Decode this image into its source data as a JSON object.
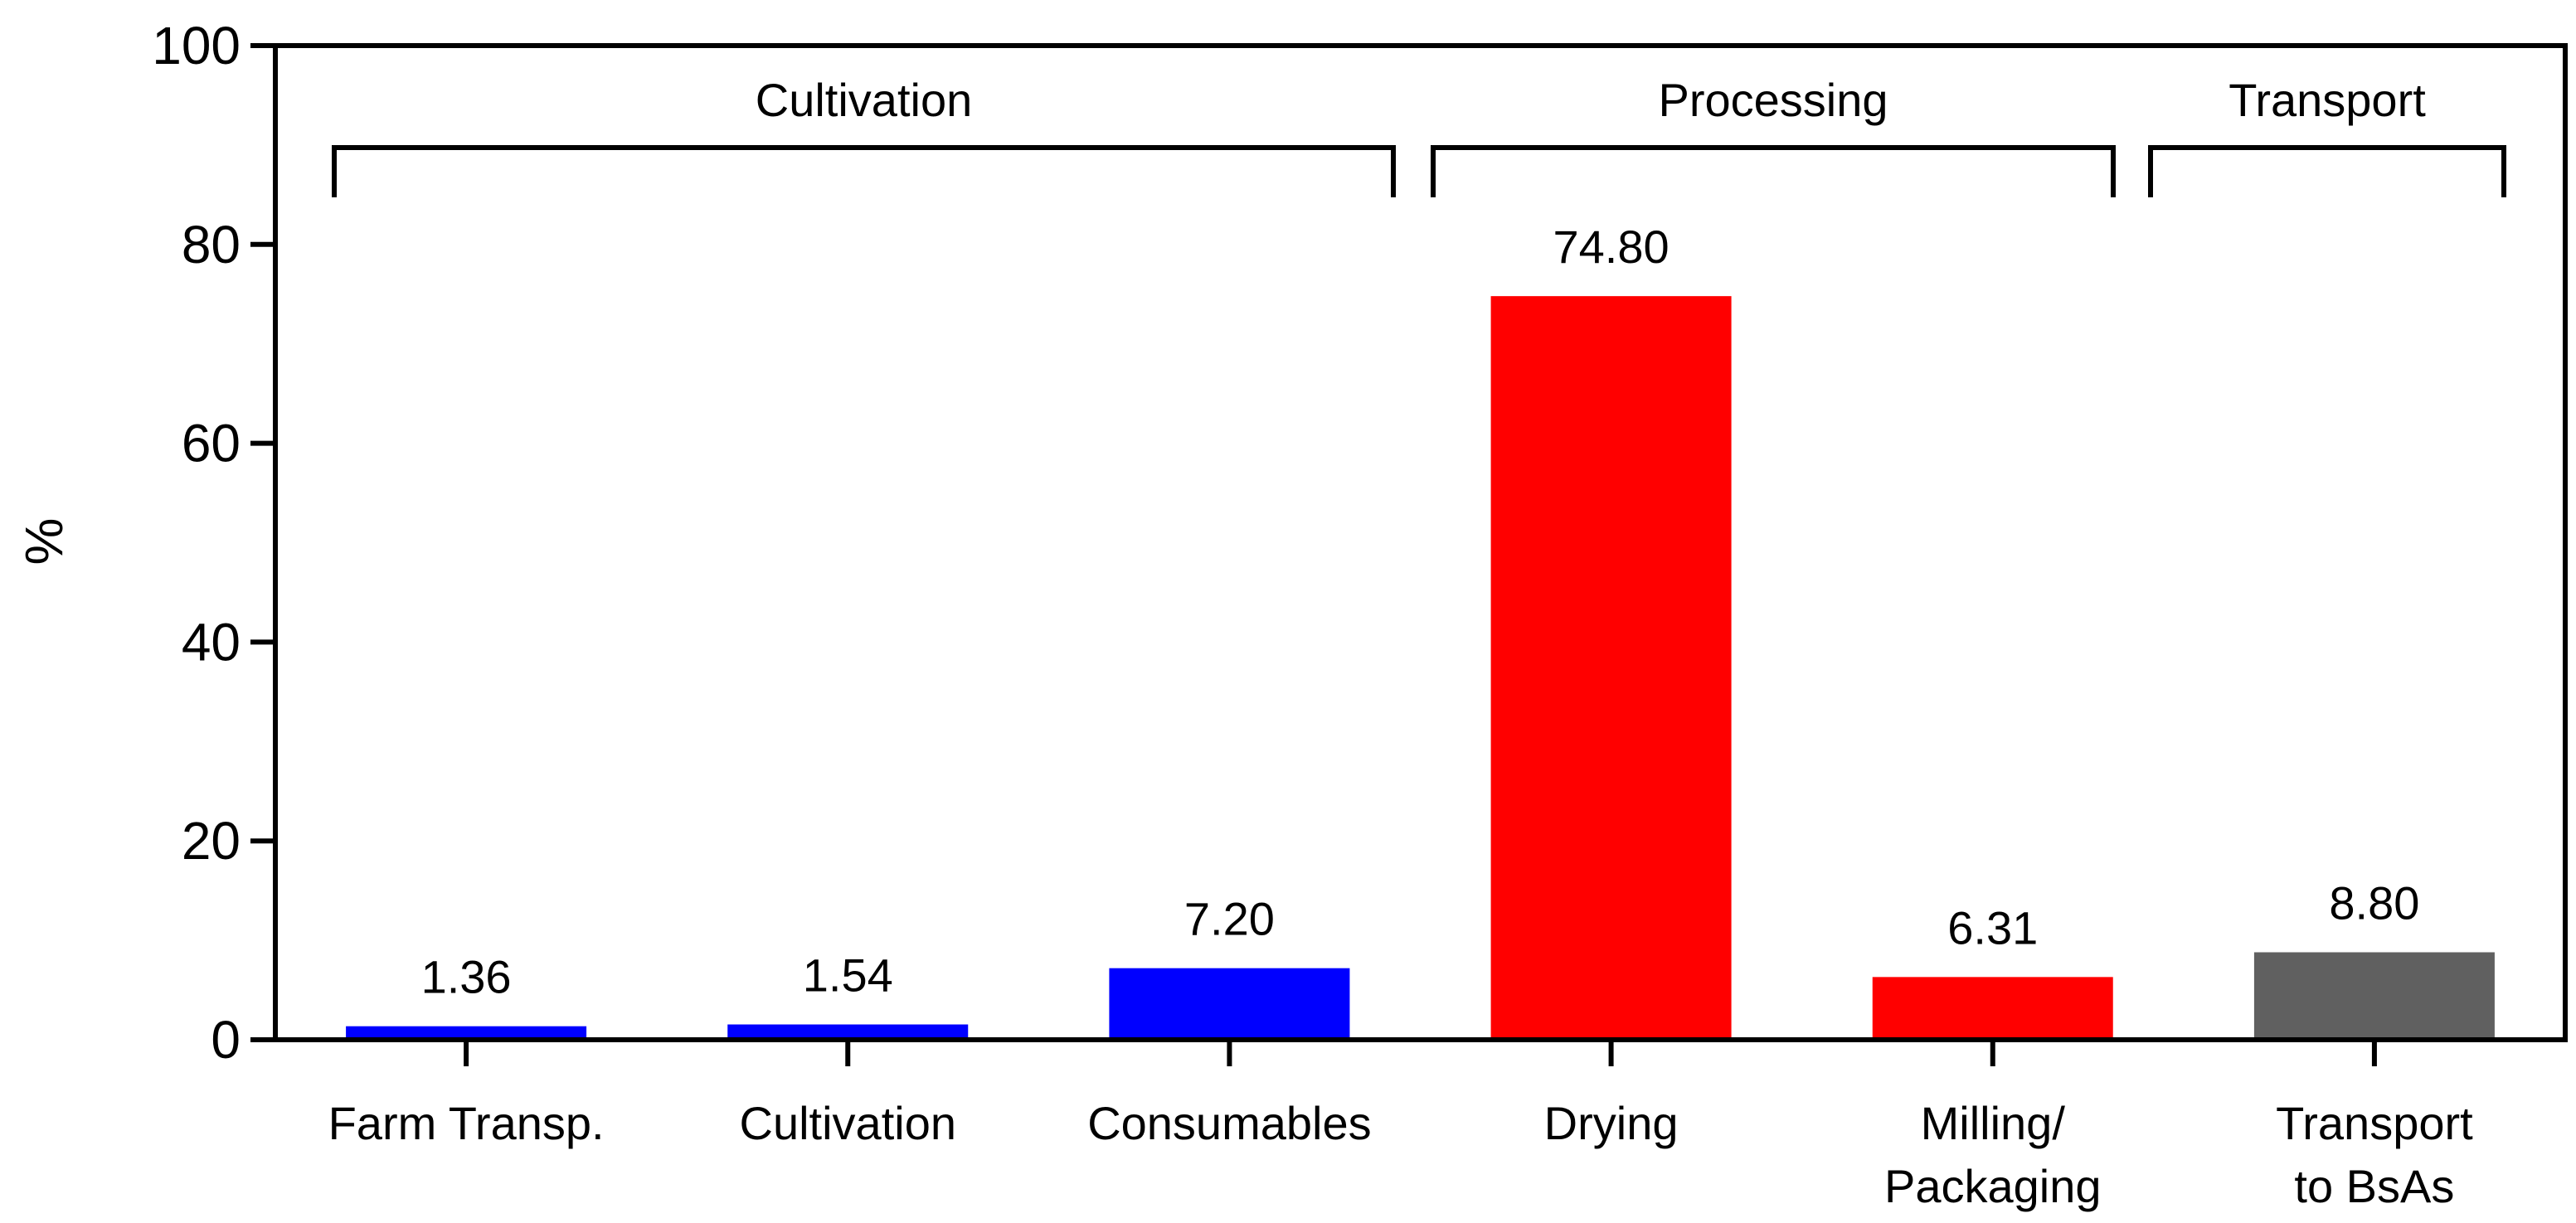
{
  "chart_data": {
    "type": "bar",
    "title": "",
    "xlabel": "",
    "ylabel": "%",
    "ylim": [
      0,
      100
    ],
    "yticks": [
      0,
      20,
      40,
      60,
      80,
      100
    ],
    "grid": false,
    "categories": [
      [
        "Farm Transp."
      ],
      [
        "Cultivation"
      ],
      [
        "Consumables"
      ],
      [
        "Drying"
      ],
      [
        "Milling/",
        "Packaging"
      ],
      [
        "Transport",
        "to BsAs"
      ]
    ],
    "values": [
      1.36,
      1.54,
      7.2,
      74.8,
      6.31,
      8.8
    ],
    "value_labels": [
      "1.36",
      "1.54",
      "7.20",
      "74.80",
      "6.31",
      "8.80"
    ],
    "bar_colors": [
      "#0000ff",
      "#0000ff",
      "#0000ff",
      "#ff0000",
      "#ff0000",
      "#606060"
    ],
    "groups": [
      {
        "label": "Cultivation",
        "first": 0,
        "last": 2
      },
      {
        "label": "Processing",
        "first": 3,
        "last": 4
      },
      {
        "label": "Transport",
        "first": 5,
        "last": 5
      }
    ]
  }
}
